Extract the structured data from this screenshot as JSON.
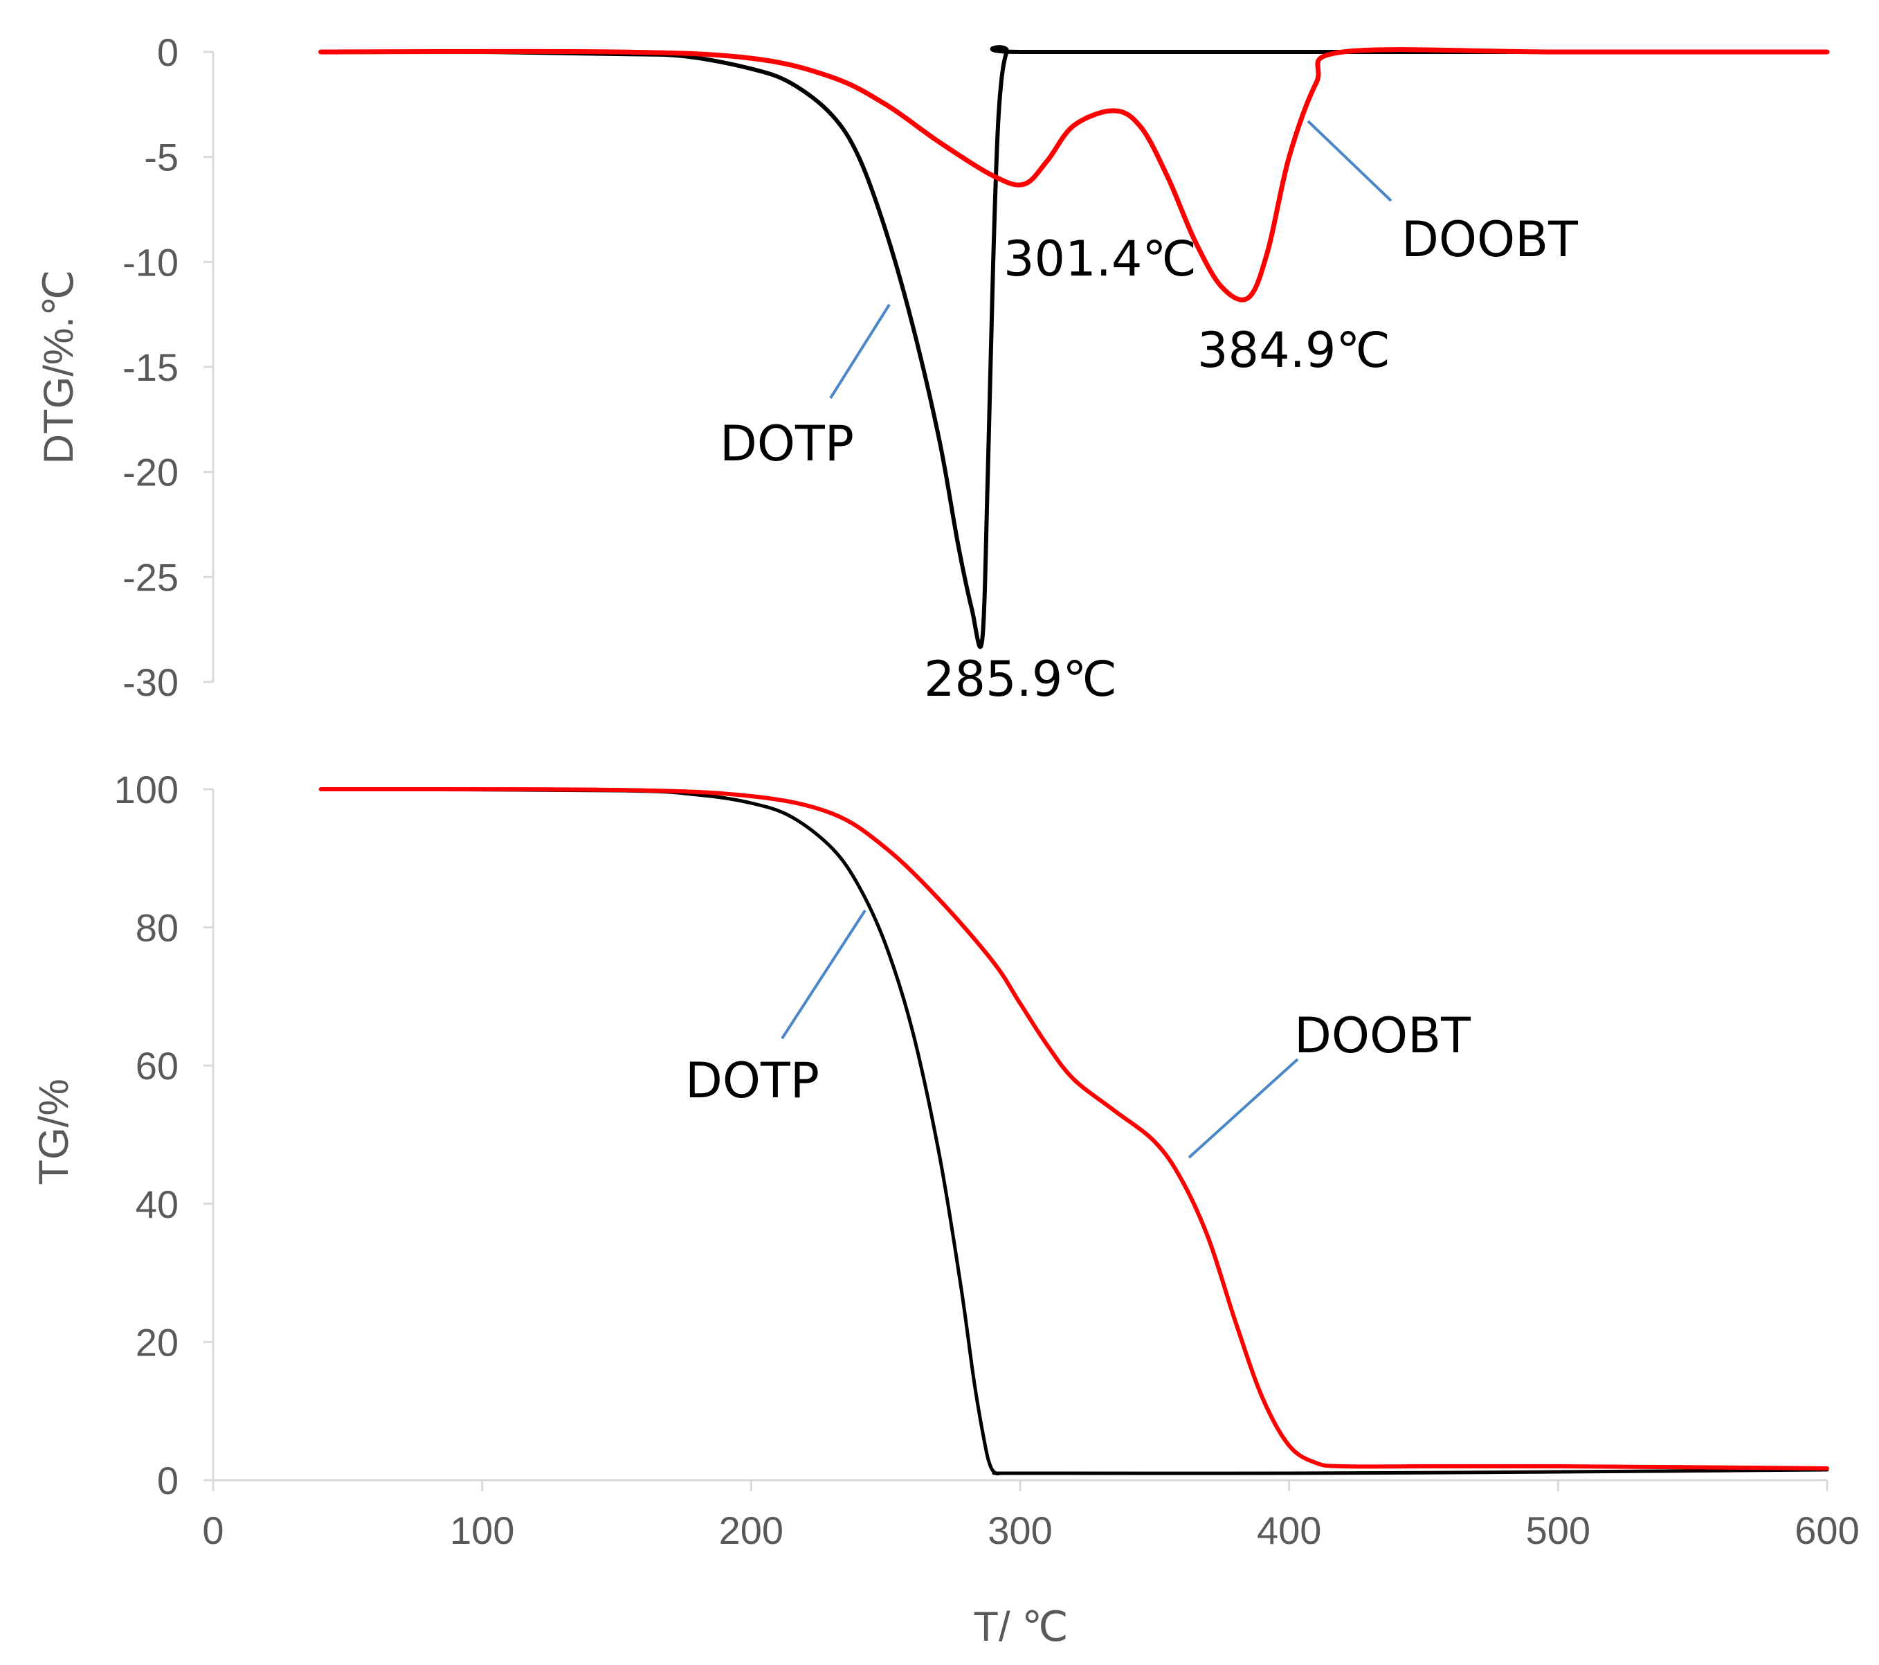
{
  "chart_data": [
    {
      "id": "dtg",
      "type": "line",
      "title": "",
      "xlabel": "",
      "ylabel": "DTG/%.℃",
      "xlim": [
        0,
        600
      ],
      "ylim": [
        -30,
        0
      ],
      "y_ticks": [
        "0",
        "-5",
        "-10",
        "-15",
        "-20",
        "-25",
        "-30"
      ],
      "grid": false,
      "series": [
        {
          "name": "DOTP",
          "color": "#000000",
          "x": [
            40,
            100,
            150,
            175,
            200,
            215,
            230,
            240,
            250,
            260,
            270,
            277,
            282,
            285.9,
            288,
            290,
            292,
            295,
            300,
            420,
            600
          ],
          "y": [
            0,
            0,
            -0.1,
            -0.2,
            -0.8,
            -1.5,
            -3.0,
            -5.0,
            -8.5,
            -13.0,
            -18.5,
            -23.5,
            -26.5,
            -28.0,
            -20.0,
            -10.0,
            -3.0,
            0,
            0,
            0,
            0
          ]
        },
        {
          "name": "DOOBT",
          "color": "#ff0000",
          "x": [
            40,
            150,
            200,
            230,
            250,
            270,
            290,
            301.4,
            310,
            320,
            335,
            345,
            355,
            365,
            375,
            384.9,
            392,
            400,
            410,
            420,
            500,
            600
          ],
          "y": [
            0,
            0,
            -0.3,
            -1.2,
            -2.5,
            -4.3,
            -5.9,
            -6.3,
            -5.2,
            -3.5,
            -2.8,
            -3.6,
            -6.0,
            -9.0,
            -11.2,
            -11.7,
            -9.5,
            -5.0,
            -1.5,
            0,
            0,
            0
          ]
        }
      ],
      "annotations": [
        {
          "text": "285.9℃",
          "x": 285.9,
          "y": -28.0
        },
        {
          "text": "301.4℃",
          "x": 301.4,
          "y": -6.3
        },
        {
          "text": "384.9℃",
          "x": 384.9,
          "y": -11.7
        }
      ],
      "series_labels": [
        "DOTP",
        "DOOBT"
      ]
    },
    {
      "id": "tg",
      "type": "line",
      "title": "",
      "xlabel": "T/ ℃",
      "ylabel": "TG/%",
      "xlim": [
        0,
        600
      ],
      "ylim": [
        0,
        100
      ],
      "x_ticks": [
        "0",
        "100",
        "200",
        "300",
        "400",
        "500",
        "600"
      ],
      "y_ticks": [
        "0",
        "20",
        "40",
        "60",
        "80",
        "100"
      ],
      "grid": false,
      "series": [
        {
          "name": "DOTP",
          "color": "#000000",
          "x": [
            40,
            150,
            180,
            200,
            215,
            230,
            240,
            250,
            260,
            270,
            278,
            283,
            287,
            289,
            291,
            293,
            300,
            400,
            500,
            600
          ],
          "y": [
            100,
            99.8,
            99.2,
            98.0,
            96.0,
            91.5,
            86.0,
            77.5,
            65.0,
            47.0,
            28.0,
            14.0,
            5.0,
            2.0,
            1.0,
            1.0,
            1.0,
            1.0,
            1.2,
            1.5
          ]
        },
        {
          "name": "DOOBT",
          "color": "#ff0000",
          "x": [
            40,
            150,
            200,
            230,
            250,
            270,
            290,
            300,
            310,
            320,
            335,
            350,
            360,
            370,
            380,
            390,
            400,
            410,
            420,
            450,
            500,
            600
          ],
          "y": [
            100,
            99.9,
            99.0,
            96.5,
            91.5,
            84.0,
            75.0,
            69.0,
            63.0,
            58.0,
            53.5,
            49.0,
            43.5,
            35.0,
            23.0,
            12.0,
            5.0,
            2.5,
            2.0,
            2.0,
            2.0,
            1.7
          ]
        }
      ],
      "series_labels": [
        "DOTP",
        "DOOBT"
      ]
    }
  ]
}
